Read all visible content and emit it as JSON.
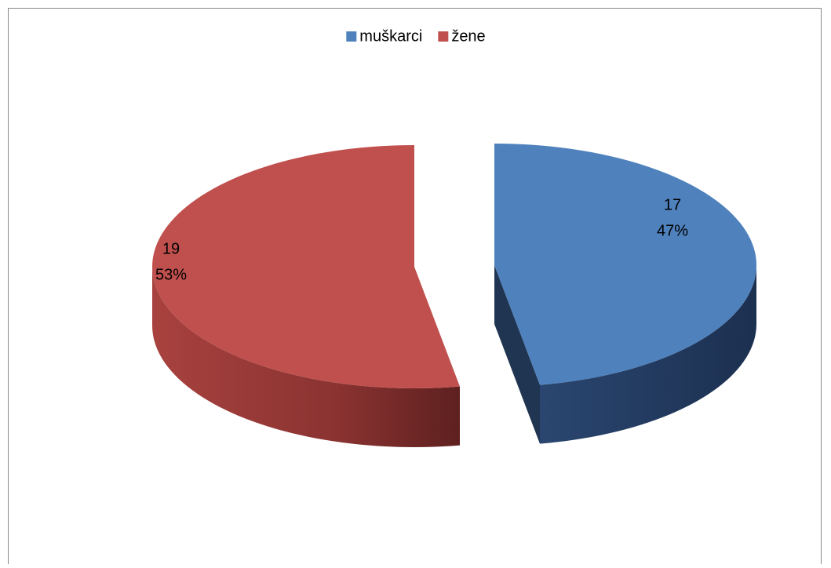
{
  "chart_data": {
    "type": "pie",
    "categories": [
      "muškarci",
      "žene"
    ],
    "values": [
      17,
      19
    ],
    "percent_labels": [
      "47%",
      "53%"
    ],
    "colors": [
      "#4f81bd",
      "#c0504d"
    ],
    "side_colors": [
      "#1f3552",
      "#7a2b29"
    ],
    "legend": "top",
    "three_d": true,
    "exploded": true
  }
}
